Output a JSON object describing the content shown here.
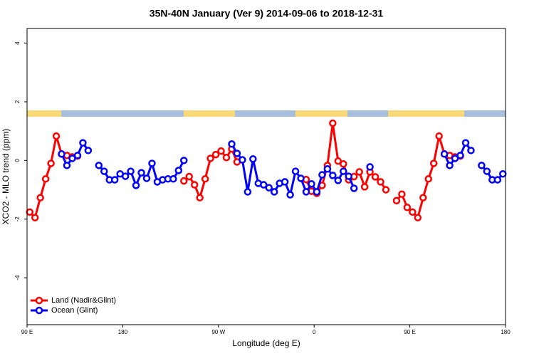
{
  "chart_data": {
    "type": "line",
    "title": "35N-40N January (Ver 9)   2014-09-06 to 2018-12-31",
    "x_label": "Longitude (deg E)",
    "y_label": "XCO2 - MLO trend (ppm)",
    "xlim": [
      90,
      540
    ],
    "ylim": [
      -5.6,
      4.5
    ],
    "xticks": [
      {
        "value": 90,
        "label": "90 E"
      },
      180,
      {
        "value": 270,
        "label": "90 W"
      },
      {
        "value": 360,
        "label": "0"
      },
      {
        "value": 450,
        "label": "90 E"
      },
      {
        "value": 540,
        "label": "180"
      }
    ],
    "yticks": [
      -4,
      -2,
      0,
      2,
      4
    ],
    "legend": "bottom-left",
    "x": [
      92.5,
      97.5,
      102.5,
      107.5,
      112.5,
      117.5,
      122.5,
      127.5,
      132.5,
      137.5,
      142.5,
      147.5,
      152.5,
      157.5,
      162.5,
      167.5,
      172.5,
      177.5,
      182.5,
      187.5,
      192.5,
      197.5,
      202.5,
      207.5,
      212.5,
      217.5,
      222.5,
      227.5,
      232.5,
      237.5,
      242.5,
      247.5,
      252.5,
      257.5,
      262.5,
      267.5,
      272.5,
      277.5,
      282.5,
      287.5,
      292.5,
      297.5,
      302.5,
      307.5,
      312.5,
      317.5,
      322.5,
      327.5,
      332.5,
      337.5,
      342.5,
      347.5,
      352.5,
      357.5,
      362.5,
      367.5,
      372.5,
      377.5,
      382.5,
      387.5,
      392.5,
      397.5,
      402.5,
      407.5,
      412.5,
      417.5,
      422.5,
      427.5,
      432.5,
      437.5,
      442.5,
      447.5,
      452.5,
      457.5,
      462.5,
      467.5,
      472.5,
      477.5,
      482.5,
      487.5,
      492.5,
      497.5,
      502.5,
      507.5,
      512.5,
      517.5,
      522.5,
      527.5,
      532.5,
      537.5
    ],
    "series": [
      {
        "name": "Land (Nadir&Glint)",
        "color": "#ff0000",
        "values": [
          -1.76,
          -1.95,
          -1.27,
          -0.63,
          -0.1,
          0.83,
          0.22,
          0.17,
          0.12,
          0.15,
          null,
          null,
          null,
          null,
          null,
          null,
          null,
          null,
          null,
          null,
          null,
          null,
          null,
          null,
          null,
          null,
          null,
          null,
          null,
          -0.7,
          -0.55,
          -0.83,
          -1.27,
          -0.63,
          0.07,
          0.2,
          0.32,
          0.1,
          0.39,
          -0.05,
          null,
          null,
          null,
          null,
          null,
          null,
          null,
          null,
          null,
          null,
          null,
          null,
          -0.65,
          -1.05,
          -1.12,
          -0.85,
          -0.17,
          1.27,
          -0.02,
          -0.12,
          -0.66,
          -0.55,
          -0.39,
          -0.9,
          -0.39,
          -0.56,
          -0.73,
          -1.0,
          null,
          -1.37,
          -1.15,
          -1.6,
          -1.76,
          -1.95,
          -1.27,
          -0.63,
          -0.1,
          0.83,
          0.22,
          0.17,
          0.12,
          0.15,
          null,
          null,
          null,
          null,
          null,
          null,
          null,
          null
        ]
      },
      {
        "name": "Ocean (Glint)",
        "color": "#0000ff",
        "values": [
          null,
          null,
          null,
          null,
          null,
          null,
          0.22,
          -0.17,
          0.07,
          0.17,
          0.6,
          0.34,
          null,
          -0.17,
          -0.37,
          -0.66,
          -0.66,
          -0.46,
          -0.54,
          -0.37,
          -0.85,
          -0.42,
          -0.61,
          -0.1,
          -0.73,
          -0.66,
          -0.63,
          -0.63,
          -0.34,
          0.0,
          null,
          null,
          null,
          null,
          null,
          null,
          null,
          null,
          0.56,
          0.24,
          0.02,
          -1.07,
          0.05,
          -0.78,
          -0.83,
          -0.93,
          -1.07,
          -0.78,
          -0.73,
          -1.17,
          -0.37,
          -0.61,
          -1.07,
          -0.8,
          -1.07,
          -0.49,
          -0.29,
          -0.51,
          -0.68,
          -0.37,
          -0.54,
          -0.95,
          null,
          null,
          -0.22,
          null,
          null,
          null,
          null,
          null,
          null,
          null,
          null,
          null,
          null,
          null,
          null,
          null,
          0.22,
          -0.17,
          0.07,
          0.17,
          0.6,
          0.34,
          null,
          -0.17,
          -0.37,
          -0.66,
          -0.66,
          -0.46
        ]
      }
    ]
  }
}
